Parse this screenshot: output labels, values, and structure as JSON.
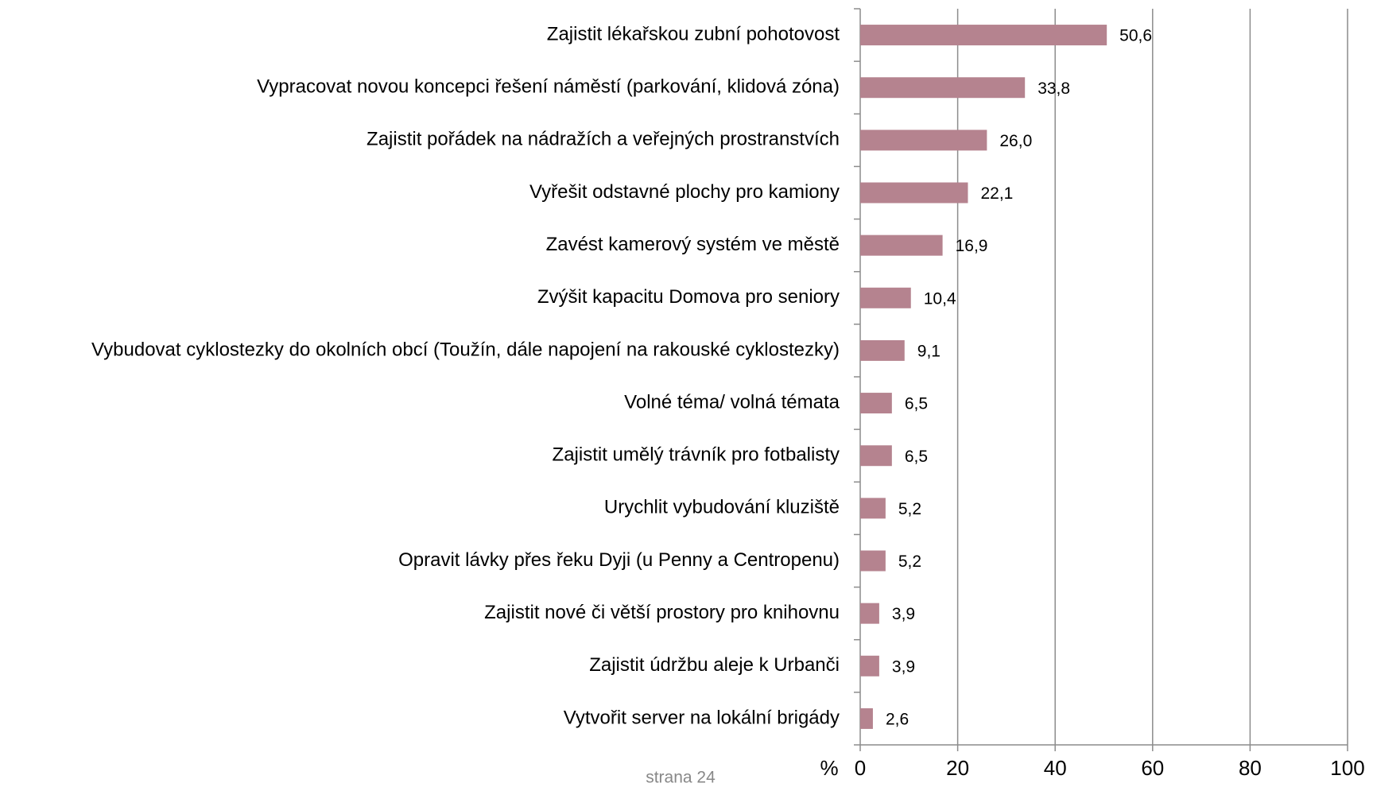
{
  "chart_data": {
    "type": "bar",
    "orientation": "horizontal",
    "categories": [
      "Zajistit lékařskou zubní pohotovost",
      "Vypracovat novou koncepci řešení náměstí (parkování, klidová zóna)",
      "Zajistit pořádek na nádražích a veřejných prostranstvích",
      "Vyřešit odstavné plochy pro kamiony",
      "Zavést kamerový systém ve městě",
      "Zvýšit kapacitu Domova pro seniory",
      "Vybudovat cyklostezky do okolních obcí (Toužín, dále napojení na rakouské cyklostezky)",
      "Volné téma/ volná témata",
      "Zajistit umělý trávník pro fotbalisty",
      "Urychlit vybudování kluziště",
      "Opravit lávky přes řeku Dyji (u Penny a Centropenu)",
      "Zajistit nové či větší prostory pro knihovnu",
      "Zajistit údržbu aleje k Urbanči",
      "Vytvořit server na lokální brigády"
    ],
    "values": [
      50.6,
      33.8,
      26.0,
      22.1,
      16.9,
      10.4,
      9.1,
      6.5,
      6.5,
      5.2,
      5.2,
      3.9,
      3.9,
      2.6
    ],
    "value_labels": [
      "50,6",
      "33,8",
      "26,0",
      "22,1",
      "16,9",
      "10,4",
      "9,1",
      "6,5",
      "6,5",
      "5,2",
      "5,2",
      "3,9",
      "3,9",
      "2,6"
    ],
    "color": "#b5838f",
    "xlabel": "%",
    "xlim": [
      0,
      100
    ],
    "xticks": [
      0,
      20,
      40,
      60,
      80,
      100
    ],
    "grid": true
  },
  "footer": "strana 24"
}
